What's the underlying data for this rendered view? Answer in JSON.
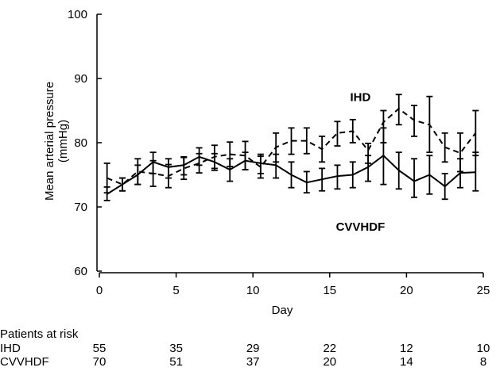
{
  "chart_data": {
    "type": "line",
    "xlabel": "Day",
    "ylabel": "Mean arterial pressure",
    "ylabel_unit": "(mmHg)",
    "xlim": [
      0,
      25
    ],
    "ylim": [
      60,
      100
    ],
    "x_ticks": [
      0,
      5,
      10,
      15,
      20,
      25
    ],
    "y_ticks": [
      60,
      70,
      80,
      90,
      100
    ],
    "grid": false,
    "series": [
      {
        "name": "IHD",
        "line_style": "dashed",
        "color": "#000000",
        "x": [
          0.5,
          1.5,
          2.5,
          3.5,
          4.5,
          5.5,
          6.5,
          7.5,
          8.5,
          9.5,
          10.5,
          11.5,
          12.5,
          13.5,
          14.5,
          15.5,
          16.5,
          17.5,
          18.5,
          19.5,
          20.5,
          21.5,
          22.5,
          23.5,
          24.5
        ],
        "y": [
          74.5,
          73.5,
          75.5,
          75.2,
          74.8,
          76.0,
          76.8,
          77.8,
          78.2,
          78.0,
          76.2,
          79.3,
          80.3,
          80.3,
          79.0,
          81.5,
          81.8,
          78.8,
          83.2,
          85.3,
          83.5,
          82.8,
          79.3,
          78.4,
          81.5
        ],
        "y_lower": [
          72.2,
          72.5,
          73.5,
          73.2,
          73.0,
          74.3,
          75.3,
          76.0,
          76.3,
          75.8,
          74.5,
          77.0,
          78.2,
          78.3,
          77.0,
          79.5,
          80.0,
          76.8,
          80.0,
          82.8,
          81.0,
          78.5,
          77.0,
          75.5,
          78.0
        ],
        "y_upper": [
          76.8,
          74.5,
          77.5,
          77.2,
          76.6,
          77.7,
          78.3,
          79.6,
          80.1,
          80.2,
          77.9,
          81.5,
          82.3,
          82.3,
          81.0,
          83.3,
          83.6,
          79.9,
          85.0,
          87.5,
          85.8,
          87.2,
          81.5,
          81.5,
          85.0
        ]
      },
      {
        "name": "CVVHDF",
        "line_style": "solid",
        "color": "#000000",
        "x": [
          0.5,
          1.5,
          2.5,
          3.5,
          4.5,
          5.5,
          6.5,
          7.5,
          8.5,
          9.5,
          10.5,
          11.5,
          12.5,
          13.5,
          14.5,
          15.5,
          16.5,
          17.5,
          18.5,
          19.5,
          20.5,
          21.5,
          22.5,
          23.5,
          24.5
        ],
        "y": [
          72.0,
          73.5,
          75.0,
          77.0,
          76.2,
          76.5,
          77.8,
          77.0,
          75.8,
          77.2,
          76.8,
          76.5,
          75.0,
          73.8,
          74.3,
          74.8,
          75.0,
          76.2,
          78.0,
          75.7,
          74.0,
          75.0,
          73.2,
          75.3,
          75.4
        ],
        "y_lower": [
          71.0,
          72.5,
          73.5,
          75.2,
          74.5,
          75.0,
          76.5,
          75.7,
          74.0,
          75.8,
          75.2,
          74.5,
          73.0,
          72.2,
          72.5,
          72.8,
          73.0,
          74.0,
          73.5,
          72.8,
          71.5,
          72.0,
          71.2,
          73.0,
          72.5
        ],
        "y_upper": [
          73.1,
          74.5,
          76.5,
          78.5,
          77.5,
          77.8,
          79.2,
          78.3,
          77.5,
          78.5,
          78.2,
          78.2,
          77.0,
          75.5,
          76.0,
          76.5,
          77.0,
          78.0,
          82.3,
          78.5,
          77.5,
          78.0,
          75.2,
          77.5,
          78.5
        ]
      }
    ],
    "annotations": [
      {
        "text": "IHD",
        "x": 17,
        "y": 86.5
      },
      {
        "text": "CVVHDF",
        "x": 17,
        "y": 66.3
      }
    ],
    "risk_table": {
      "title": "Patients at risk",
      "columns": [
        0,
        5,
        10,
        15,
        20,
        25
      ],
      "rows": [
        {
          "label": "IHD",
          "values": [
            "55",
            "35",
            "29",
            "22",
            "12",
            "10"
          ]
        },
        {
          "label": "CVVHDF",
          "values": [
            "70",
            "51",
            "37",
            "20",
            "14",
            "8"
          ]
        }
      ]
    }
  }
}
